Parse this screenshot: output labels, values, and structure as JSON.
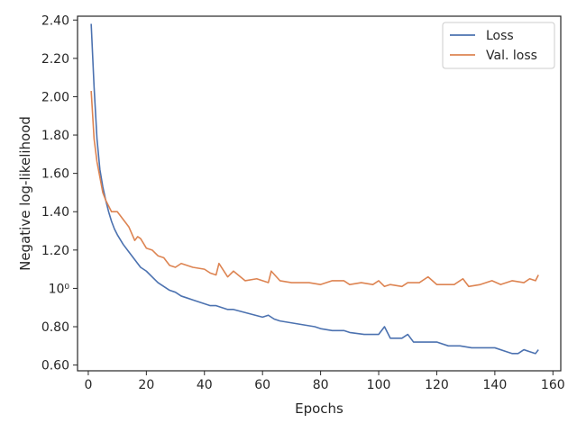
{
  "chart_data": {
    "type": "line",
    "xlabel": "Epochs",
    "ylabel": "Negative log-likelihood",
    "xlim": [
      -3.7,
      162.7
    ],
    "ylim": [
      0.57,
      2.42
    ],
    "xticks": [
      0,
      20,
      40,
      60,
      80,
      100,
      120,
      140,
      160
    ],
    "xtick_labels": [
      "0",
      "20",
      "40",
      "60",
      "80",
      "100",
      "120",
      "140",
      "160"
    ],
    "yticks": [
      0.6,
      0.8,
      1.0,
      1.2,
      1.4,
      1.6,
      1.8,
      2.0,
      2.2,
      2.4
    ],
    "ytick_labels": [
      "0.60",
      "0.80",
      "10⁰",
      "1.20",
      "1.40",
      "1.60",
      "1.80",
      "2.00",
      "2.20",
      "2.40"
    ],
    "grid": false,
    "legend_position": "top-right",
    "series": [
      {
        "name": "Loss",
        "color": "#4c72b0",
        "x": [
          1,
          2,
          3,
          4,
          5,
          6,
          7,
          8,
          9,
          10,
          12,
          14,
          16,
          18,
          20,
          22,
          24,
          26,
          28,
          30,
          32,
          34,
          36,
          38,
          40,
          42,
          44,
          46,
          48,
          50,
          55,
          60,
          62,
          64,
          66,
          70,
          74,
          78,
          80,
          84,
          88,
          90,
          95,
          100,
          102,
          104,
          108,
          110,
          112,
          116,
          120,
          124,
          128,
          132,
          136,
          140,
          144,
          146,
          148,
          150,
          152,
          154,
          155
        ],
        "values": [
          2.38,
          2.05,
          1.78,
          1.62,
          1.53,
          1.46,
          1.4,
          1.35,
          1.31,
          1.28,
          1.23,
          1.19,
          1.15,
          1.11,
          1.09,
          1.06,
          1.03,
          1.01,
          0.99,
          0.98,
          0.96,
          0.95,
          0.94,
          0.93,
          0.92,
          0.91,
          0.91,
          0.9,
          0.89,
          0.89,
          0.87,
          0.85,
          0.86,
          0.84,
          0.83,
          0.82,
          0.81,
          0.8,
          0.79,
          0.78,
          0.78,
          0.77,
          0.76,
          0.76,
          0.8,
          0.74,
          0.74,
          0.76,
          0.72,
          0.72,
          0.72,
          0.7,
          0.7,
          0.69,
          0.69,
          0.69,
          0.67,
          0.66,
          0.66,
          0.68,
          0.67,
          0.66,
          0.68
        ]
      },
      {
        "name": "Val. loss",
        "color": "#dd8452",
        "x": [
          1,
          2,
          3,
          4,
          5,
          6,
          7,
          8,
          9,
          10,
          12,
          14,
          16,
          17,
          18,
          20,
          22,
          24,
          26,
          28,
          30,
          32,
          36,
          40,
          42,
          44,
          45,
          48,
          50,
          54,
          58,
          62,
          63,
          66,
          70,
          76,
          80,
          84,
          88,
          90,
          94,
          98,
          100,
          102,
          104,
          108,
          110,
          114,
          117,
          120,
          126,
          129,
          131,
          135,
          139,
          142,
          144,
          146,
          150,
          152,
          154,
          155
        ],
        "values": [
          2.03,
          1.78,
          1.66,
          1.58,
          1.5,
          1.46,
          1.43,
          1.4,
          1.4,
          1.4,
          1.36,
          1.32,
          1.25,
          1.27,
          1.26,
          1.21,
          1.2,
          1.17,
          1.16,
          1.12,
          1.11,
          1.13,
          1.11,
          1.1,
          1.08,
          1.07,
          1.13,
          1.06,
          1.09,
          1.04,
          1.05,
          1.03,
          1.09,
          1.04,
          1.03,
          1.03,
          1.02,
          1.04,
          1.04,
          1.02,
          1.03,
          1.02,
          1.04,
          1.01,
          1.02,
          1.01,
          1.03,
          1.03,
          1.06,
          1.02,
          1.02,
          1.05,
          1.01,
          1.02,
          1.04,
          1.02,
          1.03,
          1.04,
          1.03,
          1.05,
          1.04,
          1.07
        ]
      }
    ]
  }
}
